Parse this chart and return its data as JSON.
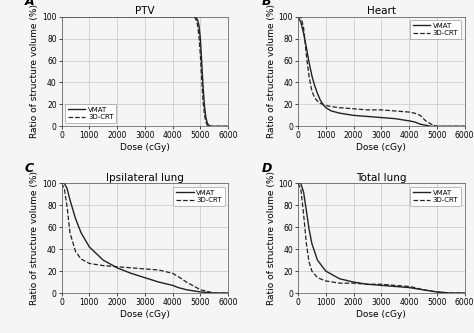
{
  "panels": [
    {
      "label": "A",
      "title": "PTV",
      "legend_loc": "lower left",
      "legend_bbox": null,
      "curves": {
        "VMAT": {
          "x": [
            0,
            500,
            1000,
            2000,
            3000,
            4000,
            4200,
            4400,
            4600,
            4700,
            4750,
            4800,
            4850,
            4900,
            4950,
            5000,
            5050,
            5100,
            5150,
            5200,
            5250,
            5300,
            5400,
            5500,
            6000
          ],
          "y": [
            100,
            100,
            100,
            100,
            100,
            100,
            100,
            100,
            100,
            100,
            100,
            100,
            99,
            97,
            92,
            80,
            58,
            35,
            18,
            8,
            3,
            1,
            0,
            0,
            0
          ],
          "style": "solid"
        },
        "3D-CRT": {
          "x": [
            0,
            500,
            1000,
            2000,
            3000,
            4000,
            4200,
            4400,
            4600,
            4700,
            4750,
            4800,
            4850,
            4900,
            4950,
            5000,
            5050,
            5100,
            5150,
            5200,
            5250,
            5300,
            5400,
            5500,
            6000
          ],
          "y": [
            100,
            100,
            100,
            100,
            100,
            100,
            100,
            100,
            100,
            100,
            100,
            99,
            97,
            92,
            82,
            65,
            42,
            22,
            10,
            4,
            1,
            0,
            0,
            0,
            0
          ],
          "style": "dashed"
        }
      }
    },
    {
      "label": "B",
      "title": "Heart",
      "legend_loc": "upper right",
      "legend_bbox": null,
      "curves": {
        "VMAT": {
          "x": [
            0,
            100,
            200,
            300,
            400,
            500,
            600,
            700,
            800,
            900,
            1000,
            1200,
            1500,
            2000,
            2500,
            3000,
            3500,
            4000,
            4200,
            4400,
            4600,
            4800,
            5000,
            5500,
            6000
          ],
          "y": [
            100,
            95,
            85,
            72,
            58,
            46,
            37,
            30,
            24,
            20,
            17,
            14,
            12,
            10,
            9,
            8,
            7,
            5,
            4,
            2,
            1,
            0,
            0,
            0,
            0
          ],
          "style": "solid"
        },
        "3D-CRT": {
          "x": [
            0,
            100,
            200,
            300,
            400,
            500,
            600,
            700,
            800,
            900,
            1000,
            1200,
            1500,
            2000,
            2500,
            3000,
            3500,
            4000,
            4200,
            4400,
            4600,
            4800,
            5000,
            5500,
            6000
          ],
          "y": [
            100,
            100,
            90,
            65,
            45,
            32,
            26,
            23,
            21,
            20,
            19,
            18,
            17,
            16,
            15,
            15,
            14,
            13,
            12,
            10,
            5,
            2,
            0,
            0,
            0
          ],
          "style": "dashed"
        }
      }
    },
    {
      "label": "C",
      "title": "Ipsilateral lung",
      "legend_loc": "upper right",
      "legend_bbox": null,
      "curves": {
        "VMAT": {
          "x": [
            0,
            100,
            200,
            300,
            500,
            700,
            1000,
            1500,
            2000,
            2500,
            3000,
            3500,
            4000,
            4200,
            4500,
            5000,
            5500,
            6000
          ],
          "y": [
            100,
            100,
            95,
            85,
            68,
            55,
            42,
            30,
            23,
            18,
            14,
            10,
            7,
            5,
            3,
            1,
            0,
            0
          ],
          "style": "solid"
        },
        "3D-CRT": {
          "x": [
            0,
            100,
            200,
            300,
            500,
            700,
            1000,
            1500,
            2000,
            2500,
            3000,
            3500,
            4000,
            4200,
            4500,
            5000,
            5500,
            6000
          ],
          "y": [
            100,
            95,
            78,
            55,
            38,
            31,
            27,
            25,
            24,
            23,
            22,
            21,
            18,
            15,
            10,
            3,
            0,
            0
          ],
          "style": "dashed"
        }
      }
    },
    {
      "label": "D",
      "title": "Total lung",
      "legend_loc": "upper right",
      "legend_bbox": null,
      "curves": {
        "VMAT": {
          "x": [
            0,
            100,
            200,
            300,
            400,
            500,
            700,
            1000,
            1500,
            2000,
            2500,
            3000,
            3500,
            4000,
            4500,
            5000,
            5500,
            6000
          ],
          "y": [
            100,
            100,
            92,
            75,
            58,
            45,
            30,
            20,
            13,
            10,
            8,
            7,
            6,
            5,
            3,
            1,
            0,
            0
          ],
          "style": "solid"
        },
        "3D-CRT": {
          "x": [
            0,
            100,
            200,
            300,
            400,
            500,
            700,
            1000,
            1500,
            2000,
            2500,
            3000,
            3500,
            4000,
            4200,
            4500,
            5000,
            5500,
            6000
          ],
          "y": [
            100,
            95,
            72,
            45,
            28,
            20,
            14,
            11,
            9,
            9,
            8,
            8,
            7,
            6,
            5,
            3,
            1,
            0,
            0
          ],
          "style": "dashed"
        }
      }
    }
  ],
  "xlim": [
    0,
    6000
  ],
  "ylim": [
    0,
    100
  ],
  "xticks": [
    0,
    1000,
    2000,
    3000,
    4000,
    5000,
    6000
  ],
  "yticks": [
    0,
    20,
    40,
    60,
    80,
    100
  ],
  "xlabel": "Dose (cGy)",
  "ylabel": "Ratio of structure volume (%)",
  "line_color": "#222222",
  "grid_color": "#bbbbbb",
  "background_color": "#f5f5f5",
  "tick_fontsize": 5.5,
  "label_fontsize": 6.5,
  "title_fontsize": 7.5,
  "panel_label_fontsize": 9,
  "legend_fontsize": 5
}
